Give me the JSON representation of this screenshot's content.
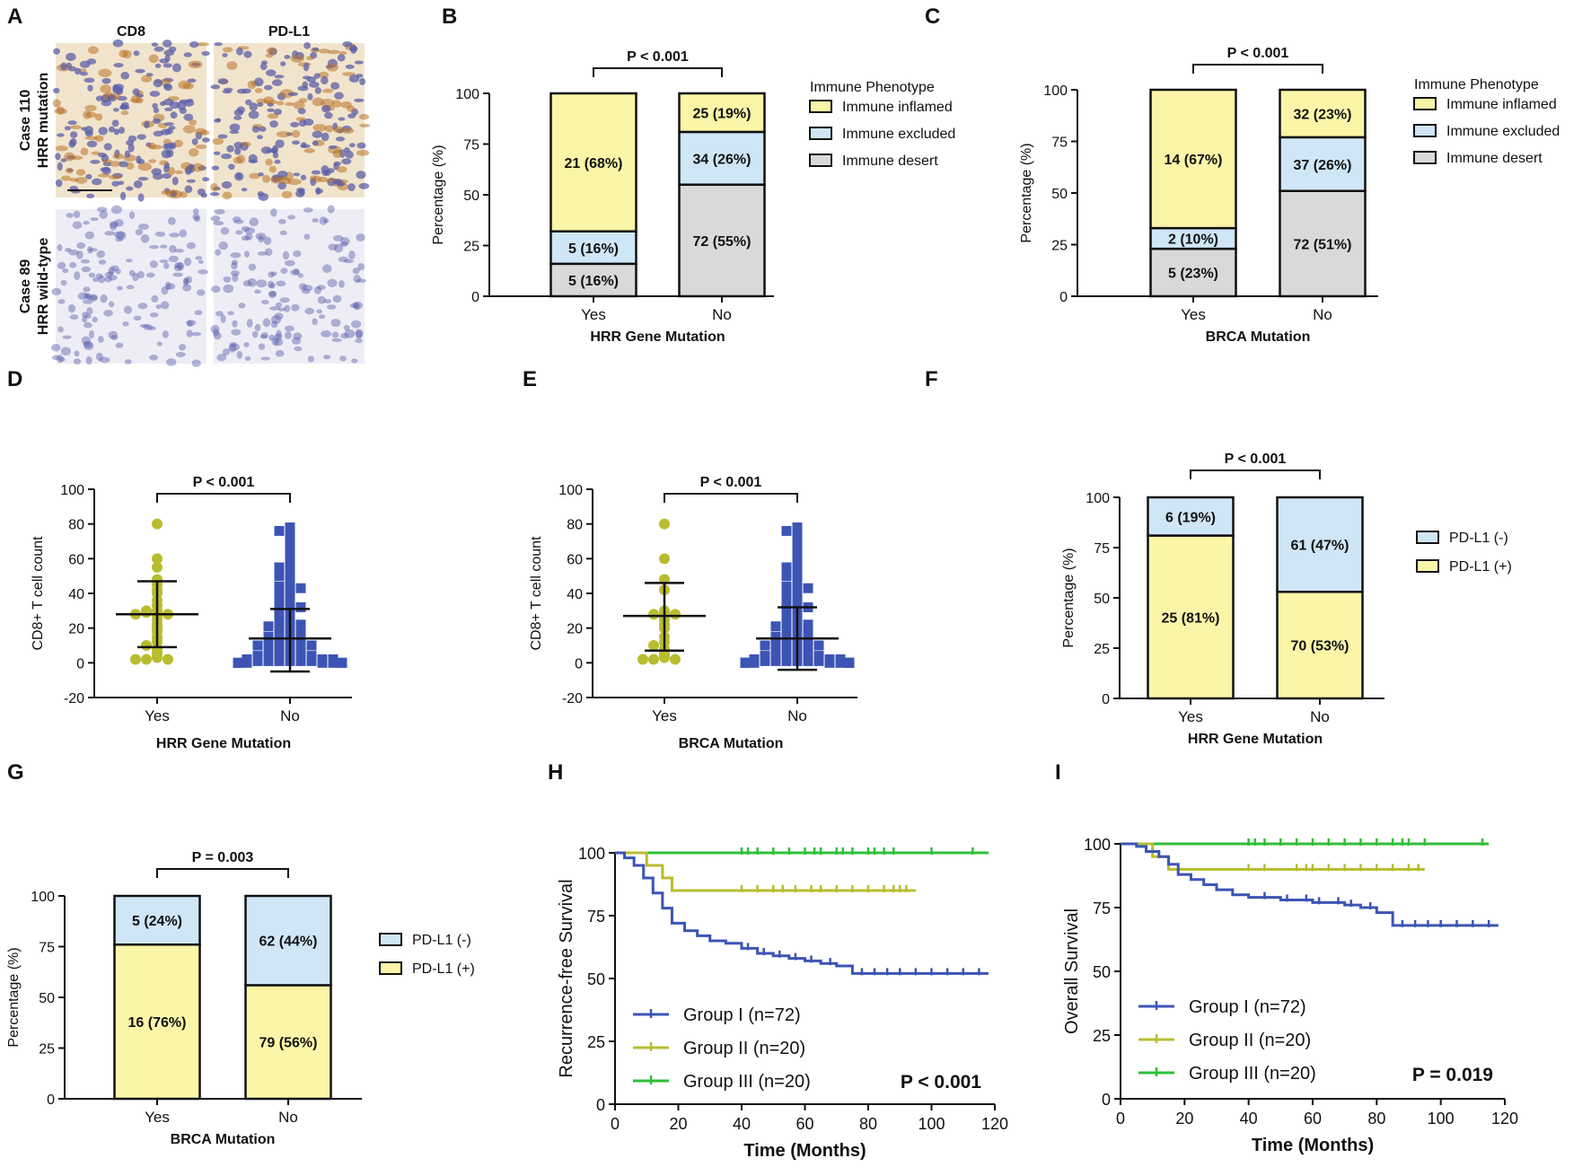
{
  "colors": {
    "inflamed": "#fbf5a8",
    "excluded": "#cfe6f6",
    "desert": "#d9d9d9",
    "pdl1_pos": "#fbf5a8",
    "pdl1_neg": "#cfe6f6",
    "scatter_yes": "#b8bd2f",
    "scatter_no": "#3c54b4",
    "group1": "#3c54b4",
    "group2": "#b8bd2f",
    "group3": "#2fbf3a"
  },
  "chart_data": [
    {
      "panel": "A",
      "type": "image_grid",
      "columns": [
        "CD8",
        "PD-L1"
      ],
      "rows": [
        {
          "label": "Case 110",
          "sublabel": "HRR mutation"
        },
        {
          "label": "Case 89",
          "sublabel": "HRR wild-type"
        }
      ]
    },
    {
      "panel": "B",
      "type": "stacked_bar",
      "title": "P < 0.001",
      "xlabel": "HRR Gene Mutation",
      "ylabel": "Percentage (%)",
      "ylim": [
        0,
        100
      ],
      "yticks": [
        "0",
        "25",
        "50",
        "75",
        "100"
      ],
      "categories": [
        "Yes",
        "No"
      ],
      "legend_title": "Immune Phenotype",
      "series": [
        {
          "name": "Immune desert",
          "color_key": "desert",
          "values": [
            16,
            55
          ],
          "labels": [
            "5 (16%)",
            "72 (55%)"
          ]
        },
        {
          "name": "Immune excluded",
          "color_key": "excluded",
          "values": [
            16,
            26
          ],
          "labels": [
            "5 (16%)",
            "34 (26%)"
          ]
        },
        {
          "name": "Immune inflamed",
          "color_key": "inflamed",
          "values": [
            68,
            19
          ],
          "labels": [
            "21 (68%)",
            "25 (19%)"
          ]
        }
      ]
    },
    {
      "panel": "C",
      "type": "stacked_bar",
      "title": "P < 0.001",
      "xlabel": "BRCA Mutation",
      "ylabel": "Percentage (%)",
      "ylim": [
        0,
        100
      ],
      "yticks": [
        "0",
        "25",
        "50",
        "75",
        "100"
      ],
      "categories": [
        "Yes",
        "No"
      ],
      "legend_title": "Immune Phenotype",
      "series": [
        {
          "name": "Immune desert",
          "color_key": "desert",
          "values": [
            23,
            51
          ],
          "labels": [
            "5 (23%)",
            "72 (51%)"
          ]
        },
        {
          "name": "Immune excluded",
          "color_key": "excluded",
          "values": [
            10,
            26
          ],
          "labels": [
            "2 (10%)",
            "37 (26%)"
          ]
        },
        {
          "name": "Immune inflamed",
          "color_key": "inflamed",
          "values": [
            67,
            23
          ],
          "labels": [
            "14 (67%)",
            "32 (23%)"
          ]
        }
      ]
    },
    {
      "panel": "D",
      "type": "scatter",
      "title": "P < 0.001",
      "xlabel": "HRR Gene Mutation",
      "ylabel": "CD8+ T cell count",
      "ylim": [
        -20,
        100
      ],
      "yticks": [
        "-20",
        "0",
        "20",
        "40",
        "60",
        "80",
        "100"
      ],
      "categories": [
        "Yes",
        "No"
      ],
      "summary": [
        {
          "mean": 28,
          "sd_low": 9,
          "sd_high": 47
        },
        {
          "mean": 14,
          "sd_low": -5,
          "sd_high": 31
        }
      ],
      "points": [
        [
          80,
          60,
          55,
          48,
          45,
          42,
          40,
          36,
          33,
          30,
          30,
          29,
          29,
          28,
          28,
          27,
          25,
          22,
          20,
          18,
          15,
          14,
          12,
          10,
          8,
          6,
          5,
          3,
          2,
          2,
          2
        ],
        [
          78,
          76,
          75,
          72,
          68,
          66,
          62,
          60,
          58,
          56,
          55,
          53,
          52,
          50,
          50,
          48,
          47,
          45,
          44,
          43,
          42,
          40,
          40,
          38,
          37,
          36,
          35,
          34,
          33,
          32,
          31,
          30,
          29,
          28,
          27,
          26,
          25,
          24,
          23,
          22,
          22,
          21,
          20,
          20,
          19,
          18,
          18,
          17,
          16,
          16,
          15,
          15,
          14,
          14,
          13,
          13,
          12,
          12,
          11,
          11,
          10,
          10,
          9,
          9,
          8,
          8,
          7,
          7,
          6,
          6,
          5,
          5,
          5,
          4,
          4,
          4,
          3,
          3,
          3,
          3,
          2,
          2,
          2,
          2,
          2,
          1,
          1,
          1,
          1,
          1,
          1,
          0,
          0,
          0,
          0,
          0,
          0,
          0,
          0,
          0
        ]
      ]
    },
    {
      "panel": "E",
      "type": "scatter",
      "title": "P < 0.001",
      "xlabel": "BRCA Mutation",
      "ylabel": "CD8+ T cell count",
      "ylim": [
        -20,
        100
      ],
      "yticks": [
        "-20",
        "0",
        "20",
        "40",
        "60",
        "80",
        "100"
      ],
      "categories": [
        "Yes",
        "No"
      ],
      "summary": [
        {
          "mean": 27,
          "sd_low": 7,
          "sd_high": 46
        },
        {
          "mean": 14,
          "sd_low": -4,
          "sd_high": 32
        }
      ],
      "points": [
        [
          80,
          60,
          48,
          42,
          30,
          29,
          28,
          28,
          27,
          25,
          22,
          20,
          15,
          12,
          10,
          8,
          5,
          3,
          2,
          2,
          2
        ],
        [
          78,
          76,
          75,
          72,
          68,
          66,
          62,
          60,
          58,
          56,
          55,
          53,
          52,
          50,
          50,
          48,
          47,
          45,
          44,
          43,
          42,
          40,
          40,
          38,
          37,
          36,
          35,
          34,
          33,
          32,
          31,
          30,
          29,
          28,
          27,
          26,
          25,
          24,
          23,
          22,
          22,
          21,
          20,
          20,
          19,
          18,
          18,
          17,
          16,
          16,
          15,
          15,
          14,
          14,
          13,
          13,
          12,
          12,
          11,
          11,
          10,
          10,
          9,
          9,
          8,
          8,
          7,
          7,
          6,
          6,
          5,
          5,
          5,
          4,
          4,
          4,
          3,
          3,
          3,
          3,
          2,
          2,
          2,
          2,
          2,
          1,
          1,
          1,
          1,
          1,
          1,
          0,
          0,
          0,
          0,
          0,
          0,
          0,
          0,
          0,
          0,
          0,
          0,
          0,
          0,
          0,
          0,
          0,
          0,
          0
        ]
      ]
    },
    {
      "panel": "F",
      "type": "stacked_bar",
      "title": "P < 0.001",
      "xlabel": "HRR Gene Mutation",
      "ylabel": "Percentage (%)",
      "ylim": [
        0,
        100
      ],
      "yticks": [
        "0",
        "25",
        "50",
        "75",
        "100"
      ],
      "categories": [
        "Yes",
        "No"
      ],
      "legend_title": "",
      "series": [
        {
          "name": "PD-L1 (+)",
          "color_key": "pdl1_pos",
          "values": [
            81,
            53
          ],
          "labels": [
            "25 (81%)",
            "70 (53%)"
          ]
        },
        {
          "name": "PD-L1 (-)",
          "color_key": "pdl1_neg",
          "values": [
            19,
            47
          ],
          "labels": [
            "6 (19%)",
            "61 (47%)"
          ]
        }
      ]
    },
    {
      "panel": "G",
      "type": "stacked_bar",
      "title": "P = 0.003",
      "xlabel": "BRCA Mutation",
      "ylabel": "Percentage (%)",
      "ylim": [
        0,
        100
      ],
      "yticks": [
        "0",
        "25",
        "50",
        "75",
        "100"
      ],
      "categories": [
        "Yes",
        "No"
      ],
      "legend_title": "",
      "series": [
        {
          "name": "PD-L1 (+)",
          "color_key": "pdl1_pos",
          "values": [
            76,
            56
          ],
          "labels": [
            "16 (76%)",
            "79 (56%)"
          ]
        },
        {
          "name": "PD-L1 (-)",
          "color_key": "pdl1_neg",
          "values": [
            24,
            44
          ],
          "labels": [
            "5 (24%)",
            "62 (44%)"
          ]
        }
      ]
    },
    {
      "panel": "H",
      "type": "line",
      "subtype": "kaplan_meier",
      "xlabel": "Time (Months)",
      "ylabel": "Recurrence-free Survival",
      "xlim": [
        0,
        120
      ],
      "ylim": [
        0,
        100
      ],
      "xticks": [
        "0",
        "20",
        "40",
        "60",
        "80",
        "100",
        "120"
      ],
      "yticks": [
        "0",
        "25",
        "50",
        "75",
        "100"
      ],
      "pvalue": "P < 0.001",
      "series": [
        {
          "name": "Group I (n=72)",
          "color_key": "group1",
          "x": [
            0,
            3,
            6,
            9,
            12,
            15,
            18,
            22,
            26,
            30,
            35,
            40,
            45,
            50,
            55,
            60,
            65,
            70,
            75,
            118
          ],
          "y": [
            100,
            98,
            95,
            90,
            84,
            78,
            72,
            69,
            67,
            65,
            64,
            62,
            60,
            59,
            58,
            57,
            56,
            55,
            52,
            52
          ],
          "censor": [
            42,
            47,
            52,
            57,
            62,
            68,
            78,
            82,
            86,
            90,
            95,
            100,
            105,
            110,
            115
          ]
        },
        {
          "name": "Group II (n=20)",
          "color_key": "group2",
          "x": [
            0,
            10,
            15,
            18,
            95
          ],
          "y": [
            100,
            95,
            90,
            85,
            85
          ],
          "censor": [
            40,
            45,
            50,
            53,
            57,
            62,
            65,
            70,
            75,
            80,
            85,
            88,
            90,
            92
          ]
        },
        {
          "name": "Group III (n=20)",
          "color_key": "group3",
          "x": [
            0,
            118
          ],
          "y": [
            100,
            100
          ],
          "censor": [
            40,
            42,
            45,
            50,
            55,
            60,
            63,
            65,
            70,
            72,
            75,
            80,
            82,
            85,
            88,
            100,
            113
          ]
        }
      ]
    },
    {
      "panel": "I",
      "type": "line",
      "subtype": "kaplan_meier",
      "xlabel": "Time (Months)",
      "ylabel": "Overall Survival",
      "xlim": [
        0,
        120
      ],
      "ylim": [
        0,
        100
      ],
      "xticks": [
        "0",
        "20",
        "40",
        "60",
        "80",
        "100",
        "120"
      ],
      "yticks": [
        "0",
        "25",
        "50",
        "75",
        "100"
      ],
      "pvalue": "P = 0.019",
      "series": [
        {
          "name": "Group I (n=72)",
          "color_key": "group1",
          "x": [
            0,
            5,
            8,
            12,
            15,
            18,
            22,
            26,
            30,
            35,
            40,
            50,
            60,
            70,
            75,
            80,
            85,
            118
          ],
          "y": [
            100,
            99,
            97,
            95,
            92,
            88,
            86,
            84,
            82,
            80,
            79,
            78,
            77,
            76,
            75,
            73,
            68,
            68
          ],
          "censor": [
            45,
            52,
            58,
            62,
            68,
            72,
            78,
            88,
            92,
            96,
            100,
            105,
            110,
            115
          ]
        },
        {
          "name": "Group II (n=20)",
          "color_key": "group2",
          "x": [
            0,
            10,
            15,
            95
          ],
          "y": [
            100,
            95,
            90,
            90
          ],
          "censor": [
            40,
            45,
            55,
            58,
            60,
            65,
            70,
            75,
            80,
            85,
            90,
            93
          ]
        },
        {
          "name": "Group III (n=20)",
          "color_key": "group3",
          "x": [
            0,
            115
          ],
          "y": [
            100,
            100
          ],
          "censor": [
            40,
            42,
            45,
            50,
            55,
            60,
            65,
            70,
            75,
            80,
            85,
            88,
            90,
            95,
            113
          ]
        }
      ]
    }
  ]
}
